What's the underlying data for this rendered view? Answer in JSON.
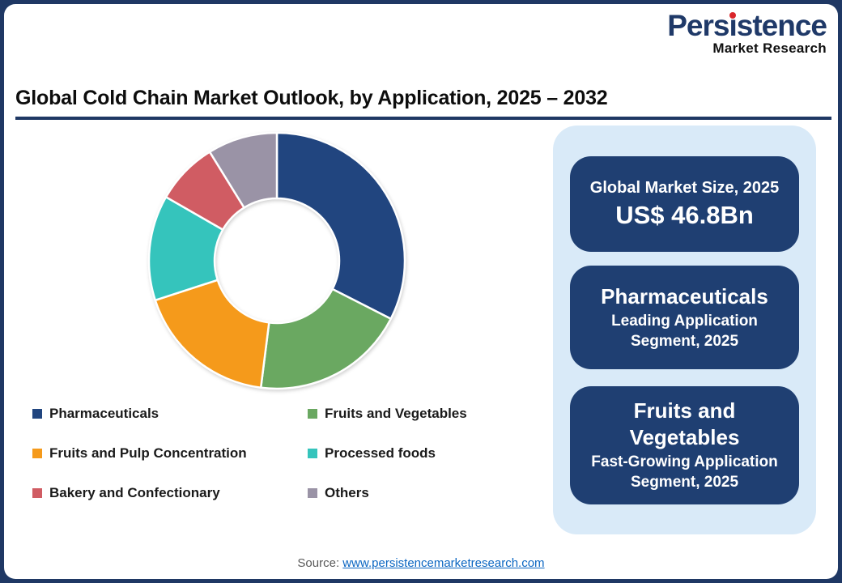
{
  "logo": {
    "p1": "Pers",
    "p2": "i",
    "p3": "stence",
    "subtitle": "Market Research",
    "brand_color": "#1F3968",
    "dot_color": "#D9252A"
  },
  "header": {
    "title": "Global Cold Chain Market Outlook, by Application, 2025 – 2032",
    "rule_color": "#1F3864"
  },
  "chart_data": {
    "type": "pie",
    "subtype": "donut",
    "title": "Global Cold Chain Market Outlook, by Application, 2025 – 2032",
    "inner_radius_ratio": 0.49,
    "start_angle_deg": 0,
    "direction": "clockwise",
    "separator_color": "#FFFFFF",
    "legend_position": "below, two columns",
    "segments": [
      {
        "label": "Pharmaceuticals",
        "value_pct": 32.5,
        "color": "#21457F"
      },
      {
        "label": "Fruits and Vegetables",
        "value_pct": 19.5,
        "color": "#6AA861"
      },
      {
        "label": "Fruits and Pulp Concentration",
        "value_pct": 18.0,
        "color": "#F59A1B"
      },
      {
        "label": "Processed foods",
        "value_pct": 13.3,
        "color": "#35C4BC"
      },
      {
        "label": "Bakery and Confectionary",
        "value_pct": 7.9,
        "color": "#D05C63"
      },
      {
        "label": "Others",
        "value_pct": 8.8,
        "color": "#9A93A6"
      }
    ]
  },
  "panel": {
    "background": "#D9EAF8",
    "card_background": "#1F3F72",
    "cards": [
      {
        "title": "Global Market Size, 2025",
        "value": "US$ 46.8Bn"
      },
      {
        "title": "Pharmaceuticals",
        "subtitle": "Leading Application Segment, 2025"
      },
      {
        "title": "Fruits and Vegetables",
        "subtitle": "Fast-Growing Application Segment, 2025"
      }
    ]
  },
  "footer": {
    "source_label": "Source:",
    "source_link": "www.persistencemarketresearch.com"
  },
  "frame": {
    "border_color": "#1F3864",
    "background": "#FFFFFF"
  }
}
